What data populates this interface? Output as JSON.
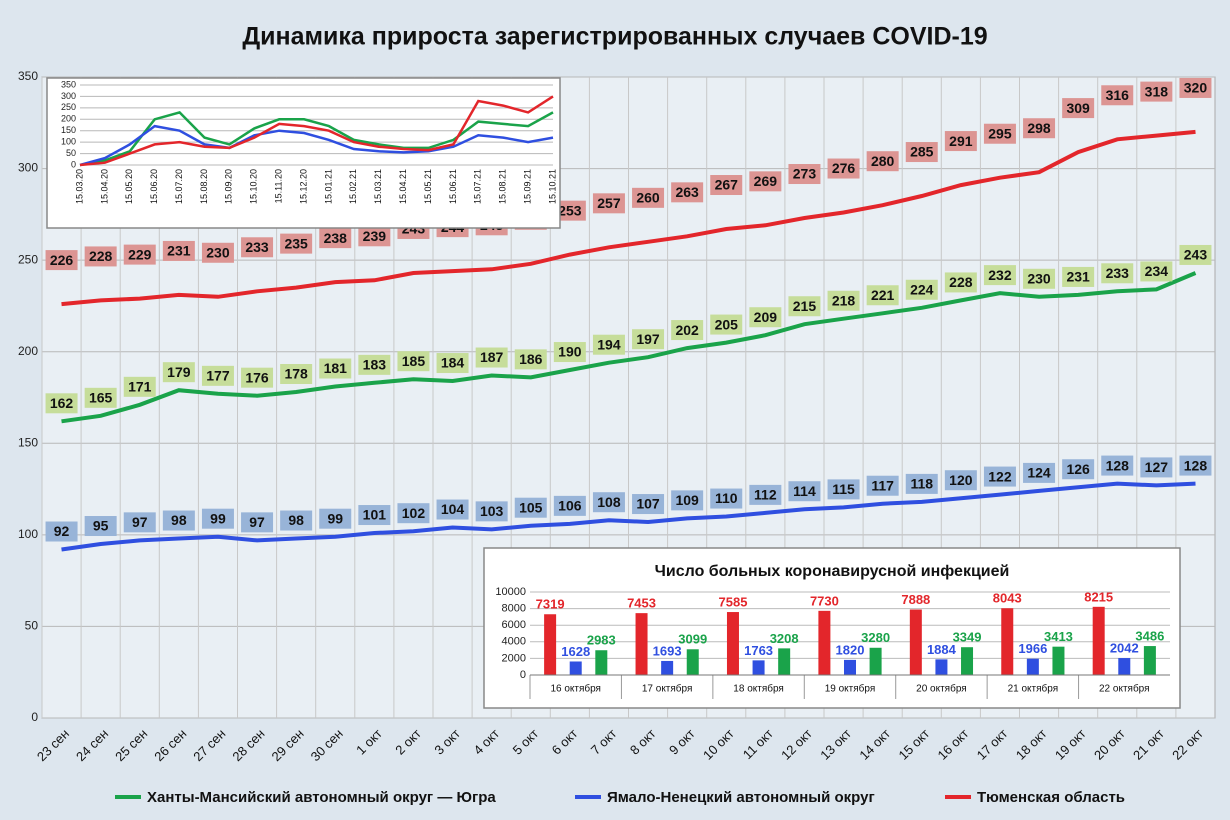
{
  "chart_data": [
    {
      "type": "line",
      "title": "Динамика прироста зарегистрированных случаев COVID-19",
      "categories": [
        "23 сен",
        "24 сен",
        "25 сен",
        "26 сен",
        "27 сен",
        "28 сен",
        "29 сен",
        "30 сен",
        "1 окт",
        "2 окт",
        "3 окт",
        "4 окт",
        "5 окт",
        "6 окт",
        "7 окт",
        "8 окт",
        "9 окт",
        "10 окт",
        "11 окт",
        "12 окт",
        "13 окт",
        "14 окт",
        "15 окт",
        "16 окт",
        "17 окт",
        "18 окт",
        "19 окт",
        "20 окт",
        "21 окт",
        "22 окт"
      ],
      "series": [
        {
          "name": "Ханты-Мансийский автономный округ — Югра",
          "color": "#1aa34a",
          "label_color": "#c6dd9a",
          "values": [
            162,
            165,
            171,
            179,
            177,
            176,
            178,
            181,
            183,
            185,
            184,
            187,
            186,
            190,
            194,
            197,
            202,
            205,
            209,
            215,
            218,
            221,
            224,
            228,
            232,
            230,
            231,
            233,
            234,
            243
          ]
        },
        {
          "name": "Ямало-Ненецкий автономный округ",
          "color": "#2f4fe0",
          "label_color": "#98b4d8",
          "values": [
            92,
            95,
            97,
            98,
            99,
            97,
            98,
            99,
            101,
            102,
            104,
            103,
            105,
            106,
            108,
            107,
            109,
            110,
            112,
            114,
            115,
            117,
            118,
            120,
            122,
            124,
            126,
            128,
            127,
            128
          ]
        },
        {
          "name": "Тюменская область",
          "color": "#e3262b",
          "label_color": "#dc9593",
          "values": [
            226,
            228,
            229,
            231,
            230,
            233,
            235,
            238,
            239,
            243,
            244,
            245,
            248,
            253,
            257,
            260,
            263,
            267,
            269,
            273,
            276,
            280,
            285,
            291,
            295,
            298,
            309,
            316,
            318,
            320
          ]
        }
      ],
      "ylim": [
        0,
        350
      ],
      "yticks": [
        0,
        50,
        100,
        150,
        200,
        250,
        300,
        350
      ],
      "grid": true,
      "legend": "bottom"
    },
    {
      "type": "line",
      "categories": [
        "15.03.20",
        "15.04.20",
        "15.05.20",
        "15.06.20",
        "15.07.20",
        "15.08.20",
        "15.09.20",
        "15.10.20",
        "15.11.20",
        "15.12.20",
        "15.01.21",
        "15.02.21",
        "15.03.21",
        "15.04.21",
        "15.05.21",
        "15.06.21",
        "15.07.21",
        "15.08.21",
        "15.09.21",
        "15.10.21"
      ],
      "series": [
        {
          "color": "#1aa34a",
          "values": [
            0,
            20,
            60,
            200,
            230,
            120,
            90,
            160,
            200,
            200,
            170,
            110,
            90,
            75,
            75,
            110,
            190,
            180,
            170,
            230
          ]
        },
        {
          "color": "#2f4fe0",
          "values": [
            0,
            30,
            90,
            170,
            150,
            90,
            75,
            130,
            150,
            140,
            110,
            70,
            60,
            55,
            60,
            80,
            130,
            120,
            100,
            120
          ]
        },
        {
          "color": "#e3262b",
          "values": [
            0,
            10,
            50,
            90,
            100,
            80,
            75,
            120,
            180,
            170,
            150,
            100,
            80,
            70,
            65,
            90,
            280,
            260,
            230,
            300
          ]
        }
      ],
      "ylim": [
        0,
        350
      ],
      "yticks": [
        0,
        50,
        100,
        150,
        200,
        250,
        300,
        350
      ],
      "grid": true
    },
    {
      "type": "bar",
      "title": "Число больных коронавирусной инфекцией",
      "categories": [
        "16 октября",
        "17 октября",
        "18 октября",
        "19 октября",
        "20 октября",
        "21 октября",
        "22 октября"
      ],
      "series": [
        {
          "color": "#e3262b",
          "values": [
            7319,
            7453,
            7585,
            7730,
            7888,
            8043,
            8215
          ]
        },
        {
          "color": "#2f4fe0",
          "values": [
            1628,
            1693,
            1763,
            1820,
            1884,
            1966,
            2042
          ]
        },
        {
          "color": "#1aa34a",
          "values": [
            2983,
            3099,
            3208,
            3280,
            3349,
            3413,
            3486
          ]
        }
      ],
      "ylim": [
        0,
        10000
      ],
      "yticks": [
        0,
        2000,
        4000,
        6000,
        8000,
        10000
      ],
      "grid": true
    }
  ]
}
